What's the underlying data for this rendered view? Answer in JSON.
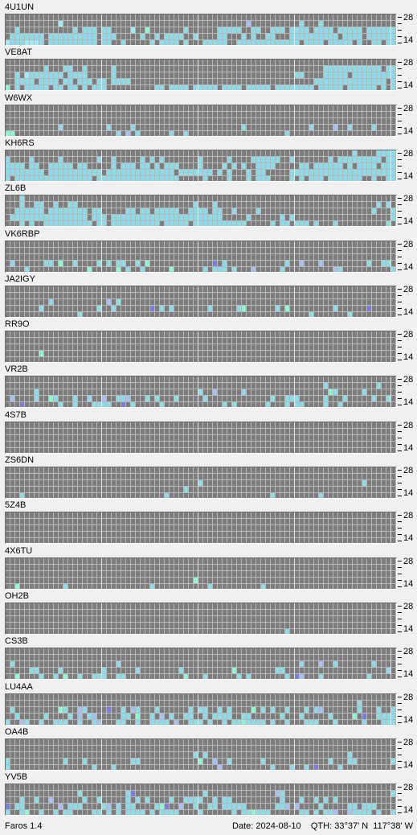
{
  "app": {
    "version_label": "Faros 1.4"
  },
  "status": {
    "date_label": "Date:",
    "date_value": "2024-08-10",
    "qth_label": "QTH:",
    "qth_value": "33°37' N  117°38' W"
  },
  "scale": {
    "top_label": "28",
    "bottom_label": "14"
  },
  "colors": {
    "cell_empty": "#7d7d7d",
    "grid_background": "#b8b8b8",
    "level_1": "#80e0f0",
    "level_2": "#90f0ff",
    "level_3": "#a0c0ff",
    "level_4": "#80ffd0",
    "level_5": "#7b7bf0"
  },
  "stations": [
    {
      "callsign": "4U1UN",
      "rows": [
        ".....................................................................................................",
        "...........2......................................3..........1...1.....................................",
        "..1...........1.111.11....2..4.......1......11111..11..111.1111.1111.11111.1111111111.1.111.11..111111.1..",
        ".1111111.1111111111.111.....1..1.1111..1....11...1.1..11...1111111111.1111.11111111.....1111.11.1..1..1.1",
        "21112221.1111111111.11..1.....1.1111.1...11111..1111111111111.1111.11111.1..11.11..1.11111.11..1.....1..."
      ]
    },
    {
      "callsign": "VE8AT",
      "rows": [
        ".........................................................................................................",
        "........1...11..1.....1...........................................111111111111.1111111...1111.11111111..",
        "..1.21111111.1111.....1.....................................11....11111.11111111111.1.1.11.1.11..1111.1.",
        "..1111.1111.11.111.11.1111......................................111111111111111.1111.1.1.1.111111111.1.",
        "4.1.11111.11.11.1.111..........11.1111.11111.1111.11111.11111111.11111.111111.1.11111..11.11.111..11..."
      ]
    },
    {
      "callsign": "W6WX",
      "rows": [
        ".........................................................................................................",
        "...................................................................................................................",
        ".........................................................................................................",
        ".........................................................................................................",
        "........................................................................................................."
      ]
    },
    {
      "callsign": "KH6RS",
      "rows": [
        "........................................................................1....1111111111111111.11111111",
        "1....1.....1.......1..1.....1.1.1.......1.....1....111111..1.......1.111111111.111111111.111111111.1.1.",
        "1111.11..11111.11.....1.111.11.1.111....1....1.1.1..1111.....11.111111.1.1111.1111111111.1111111111.11.",
        "11111111.11111111111.11111111111111.1111111.1.1...1.11.....111111111111111111111111111111111111111111111",
        "1.1111111111111111.11111111111111111.....1....1...1.111....1.1.111.1111111..1..1111111.1111111111.1.1.11"
      ]
    },
    {
      "callsign": "ZL6B",
      "rows": [
        "...1..............................................................................1.........11.......1.",
        "...1..11..1..11........................1...1.................................1.1.11..1.1.1111.1.11.11..",
        "..111111.11111111.11.....11.11.11111..1111.11..1....1.......................1...1..1.11111111.111111.1.",
        ".1111111111111111.111.11111111111111111111111.....1......1.1....................1.111.1111111111111111.",
        "...1.1..1111111111.11.1111111111.11111.11111111111.....1.11.111.1...1..........1..1.11.11.1.1..1.1..1.."
      ]
    },
    {
      "callsign": "VK6RBP",
      "rows": [
        ".........................................................................................................",
        ".........................................................................................................",
        ".........................................................................................................",
        ".........................................................................................................",
        "........................................................................................................."
      ]
    },
    {
      "callsign": "JA2IGY",
      "rows": [
        ".........................................................................................................",
        ".........................................................................................................",
        ".........................................................................................................",
        ".........................................................................................................",
        "........................................................................................................."
      ]
    },
    {
      "callsign": "RR9O",
      "rows": [
        ".........................................................................................................",
        ".........................................................................................................",
        ".........................................................................................................",
        ".........................................................................................................",
        "........................................................................................................."
      ]
    },
    {
      "callsign": "VR2B",
      "rows": [
        ".........................................................................................................",
        ".........................................................................................................",
        ".........................................................................................................",
        ".........................................................................................................",
        "........................................................................................................."
      ]
    },
    {
      "callsign": "4S7B",
      "rows": [
        ".........................................................................................................",
        ".........................................................................................................",
        ".........................................................................................................",
        ".........................................................................................................",
        "........................................................................................................."
      ]
    },
    {
      "callsign": "ZS6DN",
      "rows": [
        ".........................................................................................................",
        ".........................................................................................................",
        ".........................................................................................................",
        ".........................................................................................................",
        "........................................................................................................."
      ]
    },
    {
      "callsign": "5Z4B",
      "rows": [
        ".........................................................................................................",
        ".........................................................................................................",
        ".........................................................................................................",
        ".........................................................................................................",
        "........................................................................................................."
      ]
    },
    {
      "callsign": "4X6TU",
      "rows": [
        ".........................................................................................................",
        ".........................................................................................................",
        ".........................................................................................................",
        ".........................................................................................................",
        "........................................................................................................."
      ]
    },
    {
      "callsign": "OH2B",
      "rows": [
        ".........................................................................................................",
        ".........................................................................................................",
        ".........................................................................................................",
        ".........................................................................................................",
        "........................................................................................................."
      ]
    },
    {
      "callsign": "CS3B",
      "rows": [
        ".........................................................................................................",
        ".........................................................................................................",
        ".........................................................................................................",
        ".........................................................................................................",
        "........................................................................................................."
      ]
    },
    {
      "callsign": "LU4AA",
      "rows": [
        ".........................................................................................................",
        ".........................................................................................................",
        ".........................................................................................................",
        ".........................................................................................................",
        "........................................................................................................."
      ]
    },
    {
      "callsign": "OA4B",
      "rows": [
        ".........................................................................................................",
        ".........................................................................................................",
        ".........................................................................................................",
        ".........................................................................................................",
        "........................................................................................................."
      ]
    },
    {
      "callsign": "YV5B",
      "rows": [
        ".........................................................................................................",
        ".........................................................................................................",
        ".........................................................................................................",
        ".........................................................................................................",
        "........................................................................................................."
      ]
    }
  ]
}
